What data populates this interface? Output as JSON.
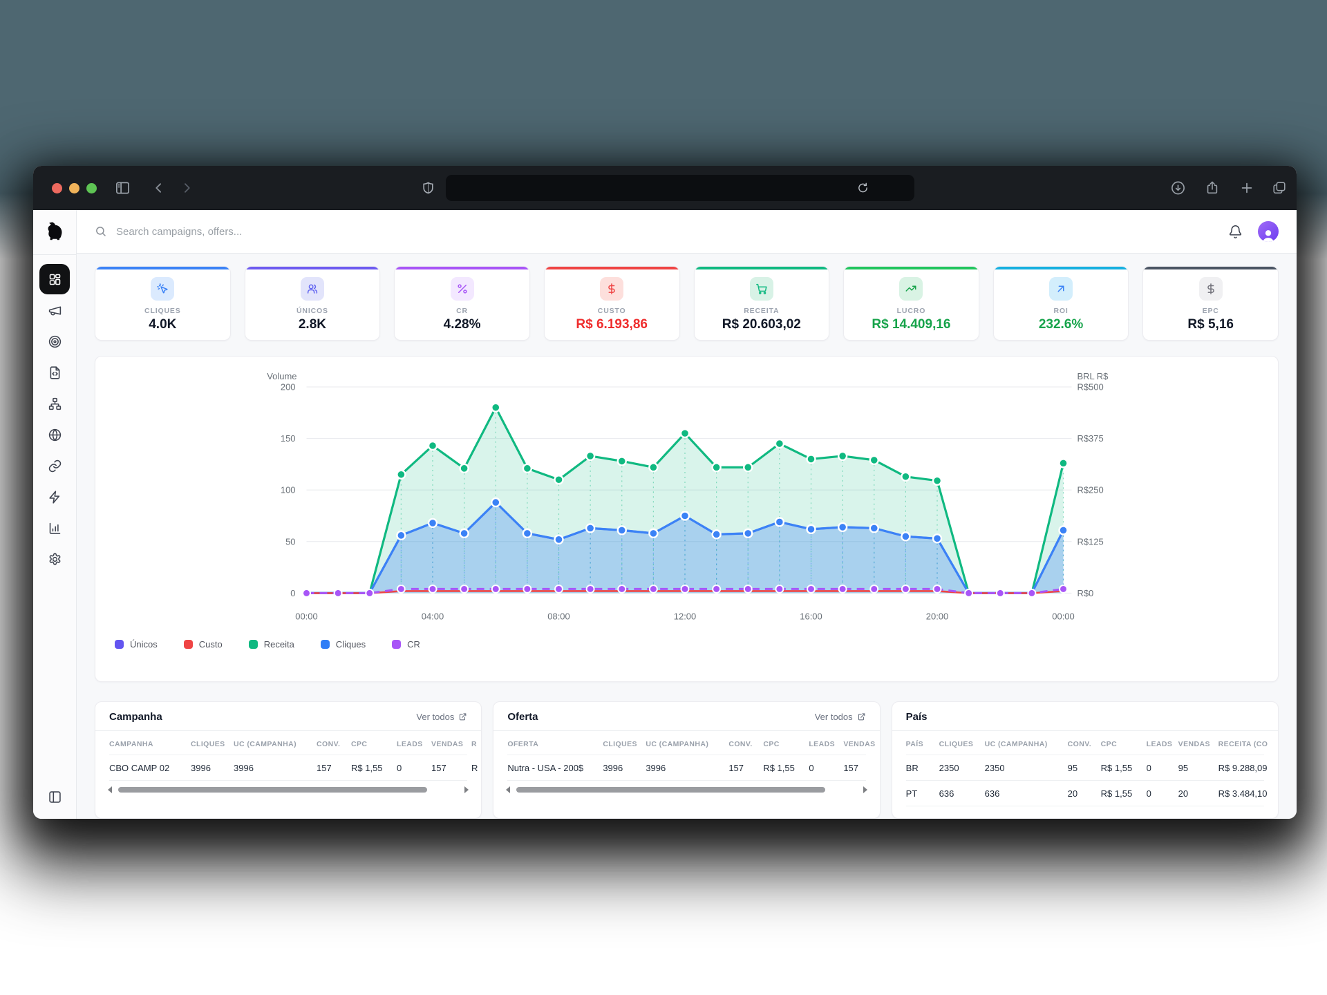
{
  "browser": {
    "traffic_lights": [
      {
        "name": "close",
        "color": "#ed6a5f"
      },
      {
        "name": "minimize",
        "color": "#f0b35a"
      },
      {
        "name": "zoom",
        "color": "#5ec454"
      }
    ],
    "url_value": "",
    "toolbar_icons_left": [
      "panel-toggle-icon",
      "chevron-left-icon",
      "chevron-right-icon",
      "shield-icon"
    ],
    "toolbar_icons_right": [
      "download-icon",
      "share-icon",
      "plus-icon",
      "tabs-icon"
    ],
    "url_reload_icon": "reload-icon"
  },
  "sidebar": {
    "logo": "dog-logo",
    "items": [
      {
        "name": "dashboard",
        "icon": "layout-dashboard",
        "active": true
      },
      {
        "name": "campaigns",
        "icon": "megaphone",
        "active": false
      },
      {
        "name": "targets",
        "icon": "target",
        "active": false
      },
      {
        "name": "scripts",
        "icon": "file-code",
        "active": false
      },
      {
        "name": "funnels",
        "icon": "network",
        "active": false
      },
      {
        "name": "domains",
        "icon": "globe",
        "active": false
      },
      {
        "name": "links",
        "icon": "link",
        "active": false
      },
      {
        "name": "automations",
        "icon": "zap",
        "active": false
      },
      {
        "name": "reports",
        "icon": "bar-chart",
        "active": false
      },
      {
        "name": "settings",
        "icon": "gear",
        "active": false
      }
    ],
    "bottom_icon": "panel-left-icon"
  },
  "topbar": {
    "search_placeholder": "Search campaigns, offers...",
    "icons": [
      "search-icon",
      "bell-icon",
      "avatar"
    ]
  },
  "kpis": [
    {
      "label": "CLIQUES",
      "value": "4.0K",
      "icon": "cursor-click",
      "accent": "#3b82f6",
      "icon_bg": "#dbeafe",
      "icon_color": "#3b82f6",
      "value_color": "#111827"
    },
    {
      "label": "ÚNICOS",
      "value": "2.8K",
      "icon": "users",
      "accent": "#6d5bf0",
      "icon_bg": "#e2e4fb",
      "icon_color": "#6366f1",
      "value_color": "#111827"
    },
    {
      "label": "CR",
      "value": "4.28%",
      "icon": "percent",
      "accent": "#a855f7",
      "icon_bg": "#f3e8ff",
      "icon_color": "#a855f7",
      "value_color": "#111827"
    },
    {
      "label": "CUSTO",
      "value": "R$ 6.193,86",
      "icon": "dollar",
      "accent": "#ef4444",
      "icon_bg": "#fddfdc",
      "icon_color": "#ef4444",
      "value_color": "#ef2d2d"
    },
    {
      "label": "RECEITA",
      "value": "R$ 20.603,02",
      "icon": "cart",
      "accent": "#10b981",
      "icon_bg": "#d8f2e6",
      "icon_color": "#10b981",
      "value_color": "#111827"
    },
    {
      "label": "LUCRO",
      "value": "R$ 14.409,16",
      "icon": "trending-up",
      "accent": "#22c55e",
      "icon_bg": "#d9f3e4",
      "icon_color": "#16a34a",
      "value_color": "#16a34a"
    },
    {
      "label": "ROI",
      "value": "232.6%",
      "icon": "arrow-up-right",
      "accent": "#17b0e0",
      "icon_bg": "#d3eefc",
      "icon_color": "#3b82f6",
      "value_color": "#16a34a"
    },
    {
      "label": "EPC",
      "value": "R$ 5,16",
      "icon": "dollar",
      "accent": "#4b5563",
      "icon_bg": "#f0f0f2",
      "icon_color": "#71717a",
      "value_color": "#111827"
    }
  ],
  "chart_data": {
    "type": "line",
    "hours": [
      0,
      1,
      2,
      3,
      4,
      5,
      6,
      7,
      8,
      9,
      10,
      11,
      12,
      13,
      14,
      15,
      16,
      17,
      18,
      19,
      20,
      21,
      22,
      23,
      24
    ],
    "x_labels": [
      "00:00",
      "04:00",
      "08:00",
      "12:00",
      "16:00",
      "20:00",
      "00:00"
    ],
    "left_axis": {
      "title": "Volume",
      "ticks": [
        0,
        50,
        100,
        150,
        200
      ],
      "max": 200
    },
    "right_axis": {
      "title": "BRL R$",
      "ticks": [
        "R$0",
        "R$125",
        "R$250",
        "R$375",
        "R$500"
      ]
    },
    "series": [
      {
        "name": "Receita",
        "color": "#10b981",
        "fill": "rgba(16,185,129,0.16)",
        "values": [
          0,
          0,
          0,
          115,
          143,
          121,
          180,
          121,
          110,
          133,
          128,
          122,
          155,
          122,
          122,
          145,
          130,
          133,
          129,
          113,
          109,
          0,
          0,
          0,
          126
        ]
      },
      {
        "name": "Únicos",
        "color": "#6366f1",
        "fill": null,
        "values": [
          0,
          0,
          0,
          56,
          68,
          58,
          88,
          58,
          52,
          63,
          61,
          58,
          75,
          57,
          58,
          69,
          62,
          64,
          63,
          55,
          53,
          0,
          0,
          0,
          61
        ]
      },
      {
        "name": "Cliques",
        "color": "#3b82f6",
        "fill": "rgba(59,130,246,0.30)",
        "values": [
          0,
          0,
          0,
          56,
          68,
          58,
          88,
          58,
          52,
          63,
          61,
          58,
          75,
          57,
          58,
          69,
          62,
          64,
          63,
          55,
          53,
          0,
          0,
          0,
          61
        ]
      },
      {
        "name": "Custo",
        "color": "#ef4444",
        "fill": null,
        "values": [
          0,
          0,
          0,
          2,
          2,
          2,
          2,
          2,
          2,
          2,
          2,
          2,
          2,
          2,
          2,
          2,
          2,
          2,
          2,
          2,
          2,
          0,
          0,
          0,
          2
        ]
      },
      {
        "name": "CR",
        "color": "#a855f7",
        "fill": null,
        "values": [
          0,
          0,
          0,
          4,
          4,
          4,
          4,
          4,
          4,
          4,
          4,
          4,
          4,
          4,
          4,
          4,
          4,
          4,
          4,
          4,
          4,
          0,
          0,
          0,
          4
        ]
      }
    ],
    "legend": [
      {
        "label": "Únicos",
        "color": "#6355f0"
      },
      {
        "label": "Custo",
        "color": "#ef4444"
      },
      {
        "label": "Receita",
        "color": "#10b981"
      },
      {
        "label": "Cliques",
        "color": "#2f7df6"
      },
      {
        "label": "CR",
        "color": "#a855f7"
      }
    ]
  },
  "tables": [
    {
      "title": "Campanha",
      "link": "Ver todos",
      "has_scrollbar": true,
      "headers": [
        "CAMPANHA",
        "CLIQUES",
        "UC (CAMPANHA)",
        "CONV.",
        "CPC",
        "LEADS",
        "VENDAS",
        "R"
      ],
      "rows": [
        [
          "CBO CAMP 02",
          "3996",
          "3996",
          "157",
          "R$ 1,55",
          "0",
          "157",
          "R"
        ]
      ]
    },
    {
      "title": "Oferta",
      "link": "Ver todos",
      "has_scrollbar": true,
      "headers": [
        "OFERTA",
        "CLIQUES",
        "UC (CAMPANHA)",
        "CONV.",
        "CPC",
        "LEADS",
        "VENDAS"
      ],
      "rows": [
        [
          "Nutra - USA - 200$",
          "3996",
          "3996",
          "157",
          "R$ 1,55",
          "0",
          "157"
        ]
      ]
    },
    {
      "title": "País",
      "link": null,
      "has_scrollbar": false,
      "headers": [
        "PAÍS",
        "CLIQUES",
        "UC (CAMPANHA)",
        "CONV.",
        "CPC",
        "LEADS",
        "VENDAS",
        "RECEITA (CO"
      ],
      "rows": [
        [
          "BR",
          "2350",
          "2350",
          "95",
          "R$ 1,55",
          "0",
          "95",
          "R$ 9.288,09"
        ],
        [
          "PT",
          "636",
          "636",
          "20",
          "R$ 1,55",
          "0",
          "20",
          "R$ 3.484,10"
        ]
      ]
    }
  ]
}
